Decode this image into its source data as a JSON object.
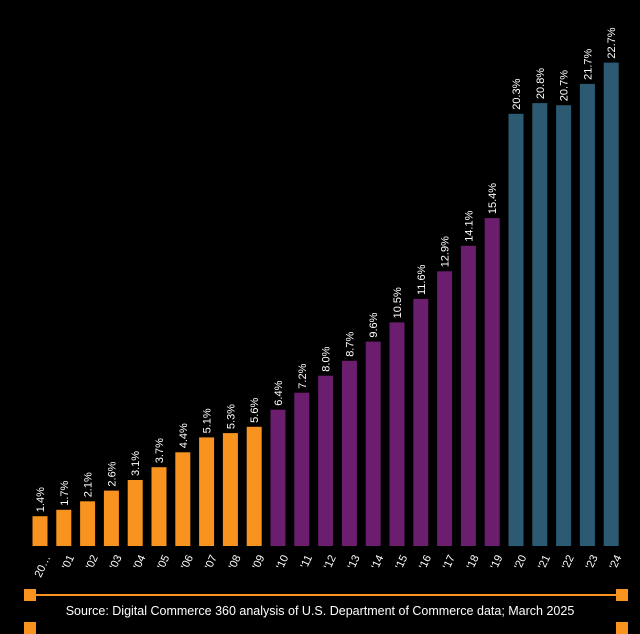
{
  "chart_data": {
    "type": "bar",
    "title": "",
    "xlabel": "",
    "ylabel": "",
    "ylim": [
      0,
      23.2
    ],
    "grid": false,
    "categories": [
      "20…",
      "'01",
      "'02",
      "'03",
      "'04",
      "'05",
      "'06",
      "'07",
      "'08",
      "'09",
      "'10",
      "'11",
      "'12",
      "'13",
      "'14",
      "'15",
      "'16",
      "'17",
      "'18",
      "'19",
      "'20",
      "'21",
      "'22",
      "'23",
      "'24"
    ],
    "values": [
      1.4,
      1.7,
      2.1,
      2.6,
      3.1,
      3.7,
      4.4,
      5.1,
      5.3,
      5.6,
      6.4,
      7.2,
      8.0,
      8.7,
      9.6,
      10.5,
      11.6,
      12.9,
      14.1,
      15.4,
      20.3,
      20.8,
      20.7,
      21.7,
      22.7
    ],
    "data_labels": [
      "1.4%",
      "1.7%",
      "2.1%",
      "2.6%",
      "3.1%",
      "3.7%",
      "4.4%",
      "5.1%",
      "5.3%",
      "5.6%",
      "6.4%",
      "7.2%",
      "8.0%",
      "8.7%",
      "9.6%",
      "10.5%",
      "11.6%",
      "12.9%",
      "14.1%",
      "15.4%",
      "20.3%",
      "20.8%",
      "20.7%",
      "21.7%",
      "22.7%"
    ],
    "bar_colors": [
      "#f7931e",
      "#f7931e",
      "#f7931e",
      "#f7931e",
      "#f7931e",
      "#f7931e",
      "#f7931e",
      "#f7931e",
      "#f7931e",
      "#f7931e",
      "#6b1d6e",
      "#6b1d6e",
      "#6b1d6e",
      "#6b1d6e",
      "#6b1d6e",
      "#6b1d6e",
      "#6b1d6e",
      "#6b1d6e",
      "#6b1d6e",
      "#6b1d6e",
      "#2c5a72",
      "#2c5a72",
      "#2c5a72",
      "#2c5a72",
      "#2c5a72"
    ]
  },
  "colors": {
    "background": "#000000",
    "accent": "#f7931e",
    "text": "#ffffff"
  },
  "footer": {
    "source": "Source: Digital Commerce 360 analysis of U.S. Department of Commerce data; March 2025"
  }
}
